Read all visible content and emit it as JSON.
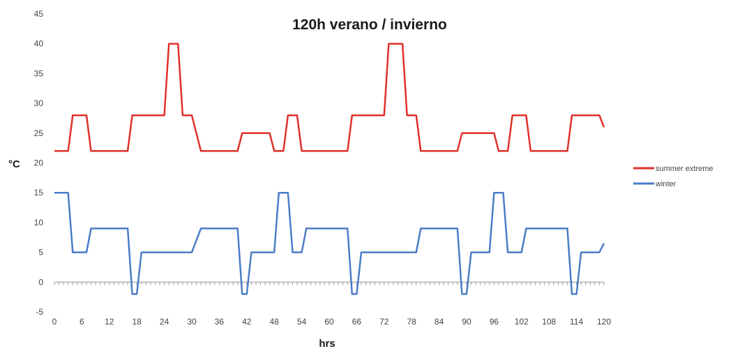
{
  "chart_data": {
    "type": "line",
    "title": "120h verano / invierno",
    "xlabel": "hrs",
    "ylabel": "°C",
    "xlim": [
      0,
      120
    ],
    "ylim": [
      -5,
      45
    ],
    "x_ticks": [
      0,
      6,
      12,
      18,
      24,
      30,
      36,
      42,
      48,
      54,
      60,
      66,
      72,
      78,
      84,
      90,
      96,
      102,
      108,
      114,
      120
    ],
    "y_ticks": [
      -5,
      0,
      5,
      10,
      15,
      20,
      25,
      30,
      35,
      40,
      45
    ],
    "grid": false,
    "legend_position": "right",
    "series": [
      {
        "name": "summer extreme",
        "color": "#e0302a",
        "x": [
          0,
          3,
          4,
          7,
          8,
          16,
          17,
          24,
          25,
          27,
          28,
          30,
          32,
          40,
          41,
          47,
          48,
          50,
          51,
          53,
          54,
          64,
          65,
          72,
          73,
          76,
          77,
          79,
          80,
          88,
          89,
          96,
          97,
          99,
          100,
          103,
          104,
          112,
          113,
          119,
          120
        ],
        "values": [
          22,
          22,
          28,
          28,
          22,
          22,
          28,
          28,
          40,
          40,
          28,
          28,
          22,
          22,
          25,
          25,
          22,
          22,
          28,
          28,
          22,
          22,
          28,
          28,
          40,
          40,
          28,
          28,
          22,
          22,
          25,
          25,
          22,
          22,
          28,
          28,
          22,
          22,
          28,
          28,
          26
        ]
      },
      {
        "name": "winter",
        "color": "#4a7cc7",
        "x": [
          0,
          3,
          4,
          7,
          8,
          16,
          17,
          18,
          19,
          30,
          32,
          40,
          41,
          42,
          43,
          48,
          49,
          51,
          52,
          54,
          55,
          64,
          65,
          66,
          67,
          79,
          80,
          88,
          89,
          90,
          91,
          95,
          96,
          98,
          99,
          102,
          103,
          112,
          113,
          114,
          115,
          119,
          120
        ],
        "values": [
          15,
          15,
          5,
          5,
          9,
          9,
          -2,
          -2,
          5,
          5,
          9,
          9,
          -2,
          -2,
          5,
          5,
          15,
          15,
          5,
          5,
          9,
          9,
          -2,
          -2,
          5,
          5,
          9,
          9,
          -2,
          -2,
          5,
          5,
          15,
          15,
          5,
          5,
          9,
          9,
          -2,
          -2,
          5,
          5,
          6.5
        ]
      }
    ]
  }
}
